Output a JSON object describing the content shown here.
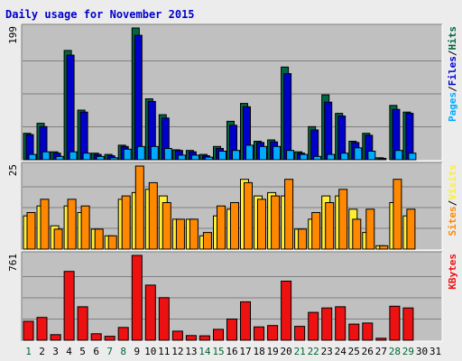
{
  "chart_data": {
    "type": "bar",
    "title": "Daily usage for November 2015",
    "categories": [
      "1",
      "2",
      "3",
      "4",
      "5",
      "6",
      "7",
      "8",
      "9",
      "10",
      "11",
      "12",
      "13",
      "14",
      "15",
      "16",
      "17",
      "18",
      "19",
      "20",
      "21",
      "22",
      "23",
      "24",
      "25",
      "26",
      "27",
      "28",
      "29",
      "30",
      "31"
    ],
    "weekend_days": [
      "1",
      "7",
      "8",
      "14",
      "15",
      "21",
      "22",
      "28",
      "29"
    ],
    "grid": true,
    "colors": {
      "title": "#0000cc",
      "weekday_label": "#000000",
      "weekend_label": "#006633",
      "pages": "#00aaff",
      "files": "#0000cc",
      "hits": "#006644",
      "sites": "#ff8800",
      "visits": "#ffee33",
      "kbytes": "#ee1111",
      "plot_background": "#c0c0c0",
      "page_background": "#ececec",
      "grid": "#808080"
    },
    "panels": [
      {
        "name": "hits-files-pages",
        "ymax_label": "199",
        "ymax": 199,
        "legend": [
          {
            "text": "Pages",
            "color": "#00aaff"
          },
          {
            "text": "/",
            "color": "#000000"
          },
          {
            "text": "Files",
            "color": "#0000cc"
          },
          {
            "text": "/",
            "color": "#000000"
          },
          {
            "text": "Hits",
            "color": "#006644"
          }
        ],
        "series": [
          {
            "name": "Hits",
            "color": "#006644",
            "values": [
              40,
              55,
              12,
              165,
              75,
              10,
              8,
              22,
              199,
              92,
              68,
              15,
              14,
              8,
              20,
              58,
              85,
              28,
              30,
              140,
              12,
              50,
              98,
              70,
              28,
              40,
              3,
              82,
              72,
              0,
              0
            ]
          },
          {
            "name": "Files",
            "color": "#0000cc",
            "values": [
              38,
              50,
              10,
              158,
              72,
              8,
              6,
              20,
              188,
              88,
              63,
              14,
              12,
              6,
              17,
              52,
              80,
              26,
              27,
              130,
              10,
              45,
              87,
              66,
              26,
              37,
              2,
              76,
              70,
              0,
              0
            ]
          },
          {
            "name": "Pages",
            "color": "#00aaff",
            "values": [
              8,
              12,
              5,
              12,
              10,
              5,
              3,
              16,
              20,
              20,
              17,
              7,
              7,
              4,
              13,
              14,
              22,
              20,
              20,
              14,
              8,
              5,
              8,
              10,
              18,
              13,
              0,
              14,
              10,
              0,
              0
            ]
          }
        ]
      },
      {
        "name": "visits-sites",
        "ymax_label": "25",
        "ymax": 25,
        "legend": [
          {
            "text": "Sites",
            "color": "#ff8800"
          },
          {
            "text": "/",
            "color": "#000000"
          },
          {
            "text": "Visits",
            "color": "#ffee33"
          }
        ],
        "series": [
          {
            "name": "Visits",
            "color": "#ffee33",
            "values": [
              10,
              13,
              7,
              13,
              11,
              6,
              4,
              15,
              17,
              18,
              16,
              9,
              9,
              4,
              10,
              12,
              21,
              16,
              17,
              16,
              6,
              9,
              16,
              16,
              12,
              5,
              1,
              14,
              10,
              0,
              0
            ]
          },
          {
            "name": "Sites",
            "color": "#ff8800",
            "values": [
              11,
              15,
              6,
              15,
              13,
              6,
              4,
              16,
              25,
              20,
              14,
              9,
              9,
              5,
              13,
              14,
              20,
              15,
              16,
              21,
              6,
              11,
              14,
              18,
              9,
              12,
              1,
              21,
              12,
              0,
              0
            ]
          }
        ]
      },
      {
        "name": "kbytes",
        "ymax_label": "761",
        "ymax": 761,
        "legend": [
          {
            "text": "KBytes",
            "color": "#ee1111"
          }
        ],
        "series": [
          {
            "name": "KBytes",
            "color": "#ee1111",
            "values": [
              170,
              205,
              50,
              618,
              300,
              58,
              36,
              115,
              761,
              495,
              382,
              82,
              42,
              40,
              98,
              190,
              345,
              120,
              132,
              530,
              125,
              250,
              290,
              300,
              145,
              155,
              18,
              305,
              290,
              0,
              0
            ]
          }
        ]
      }
    ]
  }
}
